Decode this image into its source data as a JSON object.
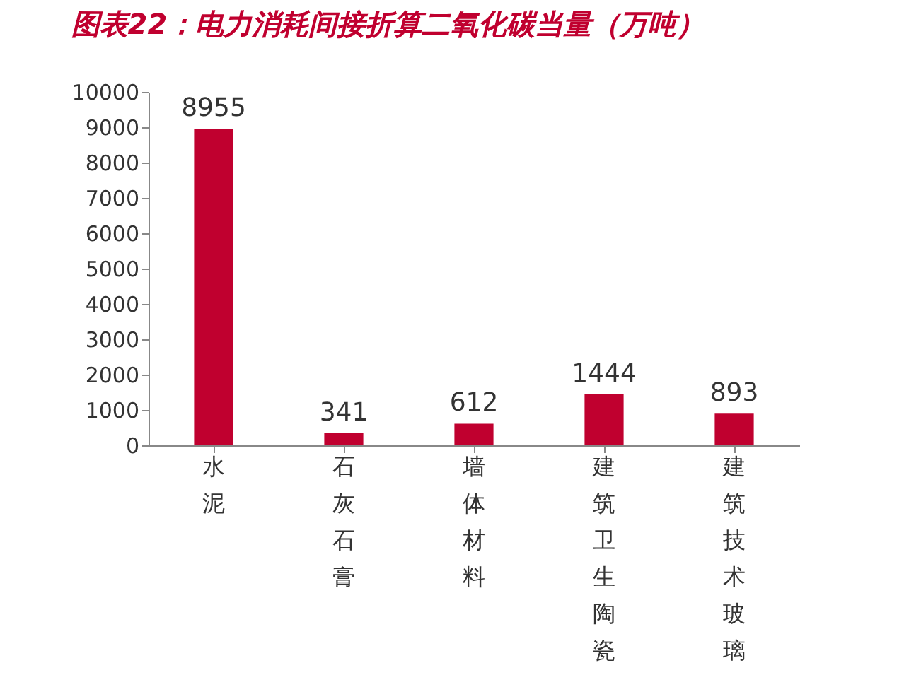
{
  "chart_data": {
    "type": "bar",
    "title": "图表22：电力消耗间接折算二氧化碳当量（万吨）",
    "categories": [
      "水泥",
      "石灰石膏",
      "墙体材料",
      "建筑卫生陶瓷",
      "建筑技术玻璃"
    ],
    "values": [
      8955,
      341,
      612,
      1444,
      893
    ],
    "color": "#c0002f",
    "ylim": [
      0,
      10000
    ],
    "yticks": [
      0,
      1000,
      2000,
      3000,
      4000,
      5000,
      6000,
      7000,
      8000,
      9000,
      10000
    ],
    "grid": false,
    "data_labels": true
  }
}
